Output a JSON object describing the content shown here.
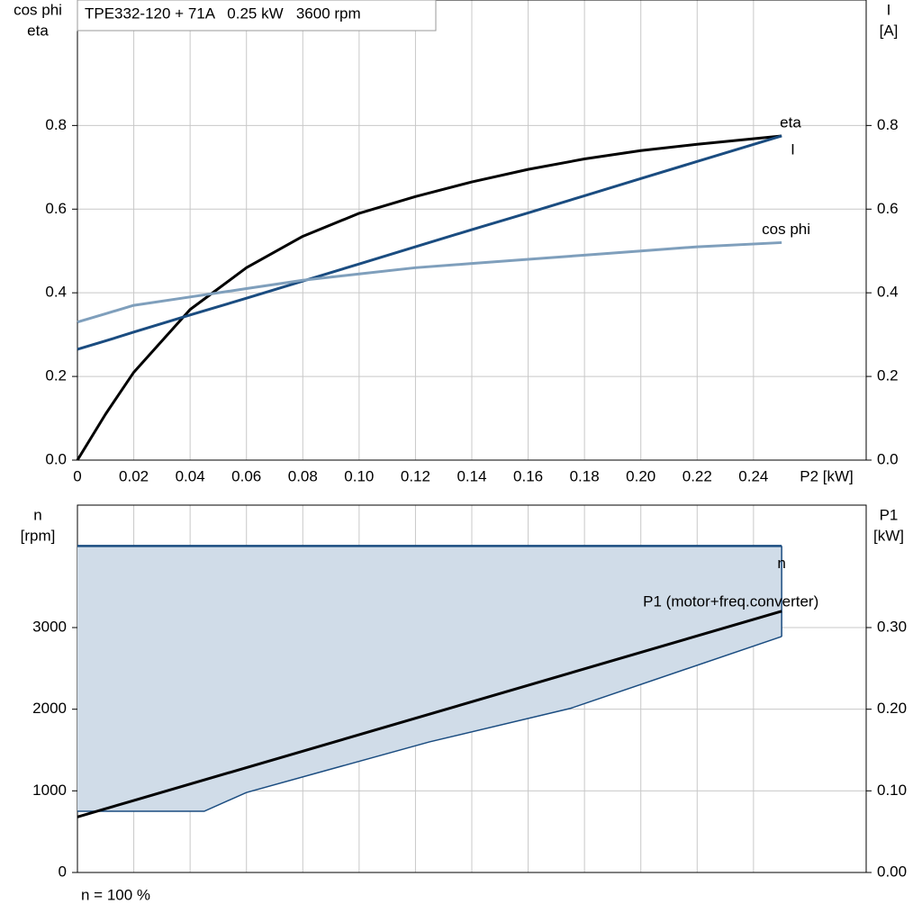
{
  "chart_data": [
    {
      "type": "line",
      "title": "TPE332-120 + 71A   0.25 kW   3600 rpm",
      "ylabel": [
        "cos phi",
        "eta"
      ],
      "y2label": [
        "I",
        "[A]"
      ],
      "xlabel": "P2 [kW]",
      "xlim": [
        0,
        0.28
      ],
      "xticks": [
        0,
        0.02,
        0.04,
        0.06,
        0.08,
        {
          "value": 0.1,
          "label": "0.10"
        },
        0.12,
        0.14,
        0.16,
        0.18,
        {
          "value": 0.2,
          "label": "0.20"
        },
        0.22,
        0.24
      ],
      "ylim": [
        0,
        1.1
      ],
      "yticks": [
        {
          "value": 0,
          "label": "0.0"
        },
        0.2,
        0.4,
        0.6,
        0.8
      ],
      "y2lim": [
        0,
        1.1
      ],
      "y2ticks": [
        {
          "value": 0,
          "label": "0.0"
        },
        0.2,
        0.4,
        0.6,
        0.8
      ],
      "grid": true,
      "series": [
        {
          "name": "eta",
          "color": "#000000",
          "x": [
            0,
            0.01,
            0.02,
            0.04,
            0.06,
            0.08,
            0.1,
            0.12,
            0.14,
            0.16,
            0.18,
            0.2,
            0.22,
            0.25
          ],
          "values": [
            0,
            0.11,
            0.21,
            0.36,
            0.46,
            0.535,
            0.59,
            0.63,
            0.665,
            0.695,
            0.72,
            0.74,
            0.755,
            0.775
          ]
        },
        {
          "name": "I",
          "color": "#1a4c80",
          "axis": "y2",
          "x": [
            0,
            0.01,
            0.02,
            0.04,
            0.06,
            0.08,
            0.1,
            0.12,
            0.14,
            0.16,
            0.18,
            0.2,
            0.22,
            0.25
          ],
          "values": [
            0.265,
            0.285,
            0.306,
            0.347,
            0.387,
            0.428,
            0.469,
            0.51,
            0.551,
            0.591,
            0.632,
            0.673,
            0.714,
            0.775
          ]
        },
        {
          "name": "cos phi",
          "color": "#7f9fbc",
          "x": [
            0,
            0.01,
            0.02,
            0.04,
            0.06,
            0.08,
            0.1,
            0.12,
            0.14,
            0.16,
            0.18,
            0.2,
            0.22,
            0.25
          ],
          "values": [
            0.33,
            0.35,
            0.37,
            0.39,
            0.41,
            0.43,
            0.445,
            0.46,
            0.47,
            0.48,
            0.49,
            0.5,
            0.51,
            0.52
          ]
        }
      ]
    },
    {
      "type": "area-line",
      "ylabel": [
        "n",
        "[rpm]"
      ],
      "y2label": [
        "P1",
        "[kW]"
      ],
      "footer": "n = 100 %",
      "xlim": [
        0,
        0.28
      ],
      "xticks": [
        0,
        0.02,
        0.04,
        0.06,
        0.08,
        0.1,
        0.12,
        0.14,
        0.16,
        0.18,
        0.2,
        0.22,
        0.24
      ],
      "ylim": [
        0,
        4500
      ],
      "yticks": [
        0,
        1000,
        2000,
        3000
      ],
      "y2lim": [
        0,
        0.45
      ],
      "y2ticks": [
        {
          "value": 0,
          "label": "0.00"
        },
        {
          "value": 0.1,
          "label": "0.10"
        },
        {
          "value": 0.2,
          "label": "0.20"
        },
        {
          "value": 0.3,
          "label": "0.30"
        }
      ],
      "grid": true,
      "series": [
        {
          "name": "n",
          "color": "#1a4c80",
          "fill": "#d0dce8",
          "x": [
            0,
            0.045,
            0.06,
            0.125,
            0.175,
            0.25
          ],
          "upper": [
            4000,
            4000,
            4000,
            4000,
            4000,
            4000
          ],
          "lower": [
            750,
            750,
            980,
            1600,
            2010,
            2890
          ]
        },
        {
          "name": "P1 (motor+freq.converter)",
          "color": "#000000",
          "axis": "y2",
          "x": [
            0,
            0.25
          ],
          "values": [
            0.068,
            0.32
          ]
        }
      ]
    }
  ]
}
